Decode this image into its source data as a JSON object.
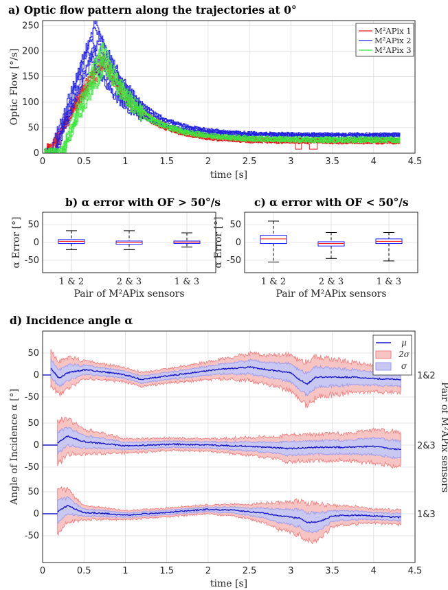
{
  "chart_data": [
    {
      "type": "line",
      "title": "a) Optic flow pattern along the trajectories at 0°",
      "xlabel": "time [s]",
      "ylabel": "Optic Flow [°/s]",
      "xlim": [
        0,
        4.5
      ],
      "ylim": [
        0,
        260
      ],
      "xticks": [
        "0",
        "0.5",
        "1",
        "1.5",
        "2",
        "2.5",
        "3",
        "3.5",
        "4",
        "4.5"
      ],
      "yticks": [
        "0",
        "50",
        "100",
        "150",
        "200",
        "250"
      ],
      "grid": true,
      "legend_position": "top-right",
      "series": [
        {
          "name": "M²APix 1",
          "color": "#e41a1c",
          "t_on": [
            0.05,
            0.14
          ],
          "peak_t": [
            0.7,
            0.78
          ],
          "peak_v": [
            175,
            195
          ],
          "tail_v": [
            20,
            28
          ],
          "t_end": 4.32,
          "n": 7
        },
        {
          "name": "M²APix 2",
          "color": "#1f1fdc",
          "t_on": [
            0.1,
            0.2
          ],
          "peak_t": [
            0.55,
            0.7
          ],
          "peak_v": [
            190,
            262
          ],
          "tail_v": [
            30,
            38
          ],
          "t_end": 4.32,
          "n": 7
        },
        {
          "name": "M²APix 3",
          "color": "#3ee43e",
          "t_on": [
            0.2,
            0.28
          ],
          "peak_t": [
            0.7,
            0.8
          ],
          "peak_v": [
            165,
            215
          ],
          "tail_v": [
            22,
            30
          ],
          "t_end": 4.32,
          "n": 7
        }
      ]
    },
    {
      "type": "box",
      "title": "b) α error with OF > 50°/s",
      "xlabel": "Pair of M²APix sensors",
      "ylabel": "α Error [°]",
      "ylim": [
        -85,
        85
      ],
      "yticks": [
        "-50",
        "0",
        "50"
      ],
      "categories": [
        "1 & 2",
        "2 & 3",
        "1 & 3"
      ],
      "boxes": [
        {
          "q1": -3,
          "median": 3,
          "q3": 8,
          "min": -20,
          "max": 33
        },
        {
          "q1": -5,
          "median": 0,
          "q3": 4,
          "min": -20,
          "max": 33
        },
        {
          "q1": -3,
          "median": 1,
          "q3": 4,
          "min": -13,
          "max": 27
        }
      ]
    },
    {
      "type": "box",
      "title": "c) α error with OF < 50°/s",
      "xlabel": "Pair of M²APix sensors",
      "ylabel": "α Error [°]",
      "ylim": [
        -85,
        85
      ],
      "yticks": [
        "-50",
        "0",
        "50"
      ],
      "categories": [
        "1 & 2",
        "2 & 3",
        "1 & 3"
      ],
      "boxes": [
        {
          "q1": -3,
          "median": 10,
          "q3": 20,
          "min": -55,
          "max": 60
        },
        {
          "q1": -10,
          "median": -3,
          "q3": 2,
          "min": -45,
          "max": 28
        },
        {
          "q1": -3,
          "median": 3,
          "q3": 10,
          "min": -52,
          "max": 28
        }
      ]
    },
    {
      "type": "area",
      "title": "d) Incidence angle α",
      "xlabel": "time [s]",
      "ylabel": "Angle of Incidence α [°]",
      "right_label": "Pair of M²APix sensors",
      "xlim": [
        0,
        4.5
      ],
      "xticks": [
        "0",
        "0.5",
        "1",
        "1.5",
        "2",
        "2.5",
        "3",
        "3.5",
        "4",
        "4.5"
      ],
      "yticks": [
        "50",
        "0",
        "-50"
      ],
      "legend": [
        "μ",
        "2σ",
        "σ"
      ],
      "colors": {
        "mu": "#1515c8",
        "two_sigma_fill": "#f7c4c4",
        "two_sigma_edge": "#f08080",
        "sigma_fill": "#c8c8f2",
        "sigma_edge": "#9a9af0"
      },
      "panels": [
        {
          "label": "1&2",
          "t_start": 0.1,
          "mu": [
            [
              0.1,
              15
            ],
            [
              0.2,
              -8
            ],
            [
              0.3,
              5
            ],
            [
              0.5,
              12
            ],
            [
              0.7,
              8
            ],
            [
              0.9,
              3
            ],
            [
              1.0,
              0
            ],
            [
              1.2,
              -10
            ],
            [
              1.4,
              -5
            ],
            [
              1.6,
              0
            ],
            [
              1.8,
              5
            ],
            [
              2.0,
              10
            ],
            [
              2.2,
              14
            ],
            [
              2.5,
              18
            ],
            [
              2.8,
              10
            ],
            [
              3.0,
              5
            ],
            [
              3.1,
              -10
            ],
            [
              3.2,
              -20
            ],
            [
              3.3,
              -5
            ],
            [
              3.5,
              -5
            ],
            [
              3.8,
              -5
            ],
            [
              4.0,
              -8
            ],
            [
              4.3,
              -10
            ]
          ],
          "sigma": [
            [
              0.1,
              20
            ],
            [
              0.3,
              18
            ],
            [
              0.5,
              10
            ],
            [
              1.0,
              8
            ],
            [
              1.5,
              8
            ],
            [
              2.0,
              10
            ],
            [
              2.5,
              15
            ],
            [
              3.0,
              20
            ],
            [
              3.2,
              25
            ],
            [
              3.5,
              20
            ],
            [
              4.0,
              15
            ],
            [
              4.3,
              15
            ]
          ]
        },
        {
          "label": "2&3",
          "t_start": 0.18,
          "mu": [
            [
              0.18,
              5
            ],
            [
              0.3,
              20
            ],
            [
              0.5,
              8
            ],
            [
              0.8,
              2
            ],
            [
              1.0,
              -2
            ],
            [
              1.3,
              0
            ],
            [
              1.6,
              2
            ],
            [
              2.0,
              0
            ],
            [
              2.5,
              -3
            ],
            [
              3.0,
              -8
            ],
            [
              3.3,
              -5
            ],
            [
              3.6,
              -5
            ],
            [
              4.0,
              -3
            ],
            [
              4.3,
              -10
            ]
          ],
          "sigma": [
            [
              0.18,
              25
            ],
            [
              0.3,
              20
            ],
            [
              0.5,
              14
            ],
            [
              1.0,
              8
            ],
            [
              1.5,
              7
            ],
            [
              2.0,
              7
            ],
            [
              2.5,
              10
            ],
            [
              3.0,
              15
            ],
            [
              3.5,
              15
            ],
            [
              4.0,
              18
            ],
            [
              4.3,
              20
            ]
          ]
        },
        {
          "label": "1&3",
          "t_start": 0.18,
          "mu": [
            [
              0.18,
              5
            ],
            [
              0.3,
              18
            ],
            [
              0.5,
              3
            ],
            [
              0.8,
              0
            ],
            [
              1.0,
              -3
            ],
            [
              1.5,
              3
            ],
            [
              2.0,
              10
            ],
            [
              2.3,
              8
            ],
            [
              2.6,
              3
            ],
            [
              2.9,
              -5
            ],
            [
              3.1,
              -10
            ],
            [
              3.2,
              -20
            ],
            [
              3.35,
              -18
            ],
            [
              3.5,
              -5
            ],
            [
              3.8,
              -3
            ],
            [
              4.0,
              -5
            ],
            [
              4.3,
              -8
            ]
          ],
          "sigma": [
            [
              0.18,
              25
            ],
            [
              0.3,
              18
            ],
            [
              0.5,
              8
            ],
            [
              1.0,
              5
            ],
            [
              1.5,
              5
            ],
            [
              2.0,
              5
            ],
            [
              2.5,
              8
            ],
            [
              3.0,
              18
            ],
            [
              3.3,
              22
            ],
            [
              3.5,
              12
            ],
            [
              4.0,
              8
            ],
            [
              4.3,
              8
            ]
          ]
        }
      ]
    }
  ]
}
